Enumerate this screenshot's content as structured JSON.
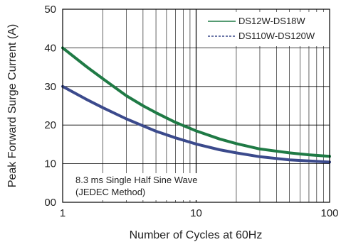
{
  "chart_data": {
    "type": "line",
    "xscale": "log",
    "xlim": [
      1,
      100
    ],
    "ylim": [
      0,
      50
    ],
    "xlabel": "Number of Cycles at 60Hz",
    "ylabel": "Peak Forward Surge Current (A)",
    "xticks": [
      "1",
      "10",
      "100"
    ],
    "yticks": [
      "00",
      "10",
      "20",
      "30",
      "40",
      "50"
    ],
    "grid": true,
    "legend_position": "top-right",
    "annotation": [
      "8.3 ms Single Half Sine Wave",
      "(JEDEC Method)"
    ],
    "series": [
      {
        "name": "DS12W-DS18W",
        "color": "#1f7a45",
        "style": "solid",
        "x": [
          1,
          1.5,
          2,
          3,
          4,
          5,
          7,
          10,
          15,
          20,
          30,
          50,
          70,
          100
        ],
        "y": [
          40,
          35.2,
          32,
          27.6,
          25,
          23.2,
          20.7,
          18.5,
          16.4,
          15.2,
          13.8,
          12.8,
          12.3,
          11.9
        ]
      },
      {
        "name": "DS110W-DS120W",
        "color": "#3b4a8c",
        "style": "dashed",
        "x": [
          1,
          1.5,
          2,
          3,
          4,
          5,
          7,
          10,
          15,
          20,
          30,
          50,
          70,
          100
        ],
        "y": [
          30,
          26.7,
          24.5,
          21.6,
          19.8,
          18.4,
          16.7,
          15.1,
          13.6,
          12.8,
          11.8,
          11,
          10.7,
          10.4
        ]
      }
    ]
  }
}
